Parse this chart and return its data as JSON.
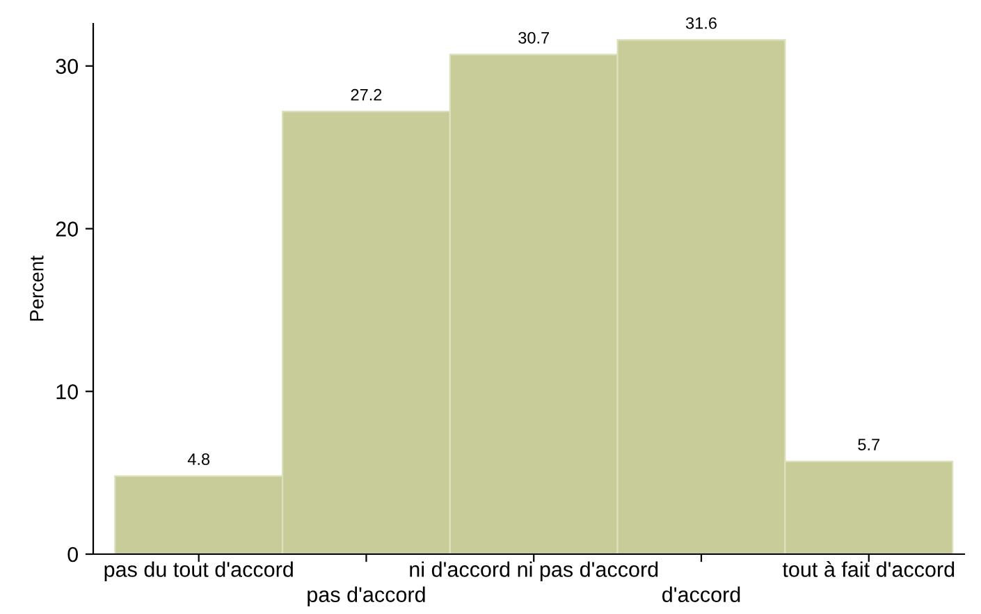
{
  "chart_data": {
    "type": "bar",
    "ylabel": "Percent",
    "categories": [
      "pas du tout d'accord",
      "pas d'accord",
      "ni d'accord ni pas d'accord",
      "d'accord",
      "tout à fait d'accord"
    ],
    "values": [
      4.8,
      27.2,
      30.7,
      31.6,
      5.7
    ],
    "color": "#c8cc98",
    "ylim": [
      0,
      32.6
    ],
    "yticks": [
      0,
      10,
      20,
      30
    ],
    "grid": false,
    "data_labels": true
  }
}
